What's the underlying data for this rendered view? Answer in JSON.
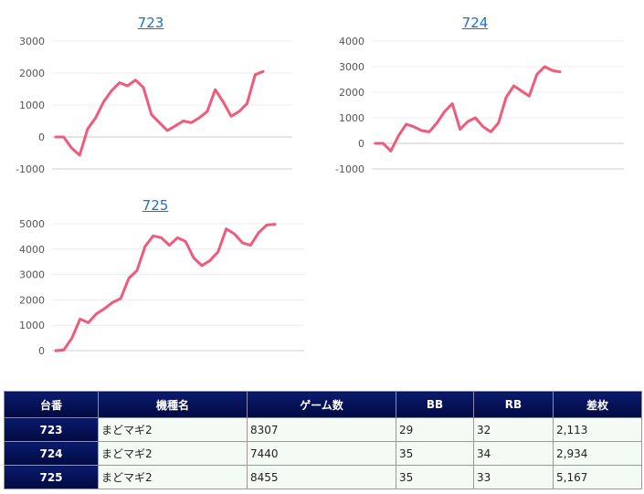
{
  "chart_data": [
    {
      "type": "line",
      "title": "723",
      "ylim": [
        -1000,
        3000
      ],
      "yticks": [
        3000,
        2000,
        1000,
        0,
        -1000
      ],
      "color": "#f05b7a",
      "values": [
        0,
        0,
        -350,
        -570,
        250,
        600,
        1100,
        1450,
        1700,
        1600,
        1780,
        1550,
        700,
        450,
        200,
        350,
        500,
        450,
        600,
        800,
        1480,
        1100,
        650,
        800,
        1050,
        1950,
        2050
      ]
    },
    {
      "type": "line",
      "title": "724",
      "ylim": [
        -1000,
        4000
      ],
      "yticks": [
        4000,
        3000,
        2000,
        1000,
        0,
        -1000
      ],
      "color": "#f05b7a",
      "values": [
        0,
        0,
        -300,
        300,
        750,
        650,
        500,
        450,
        800,
        1250,
        1550,
        550,
        850,
        1000,
        650,
        450,
        800,
        1800,
        2250,
        2050,
        1850,
        2700,
        3000,
        2850,
        2800
      ]
    },
    {
      "type": "line",
      "title": "725",
      "ylim": [
        0,
        5000
      ],
      "yticks": [
        5000,
        4000,
        3000,
        2000,
        1000,
        0
      ],
      "color": "#f05b7a",
      "values": [
        0,
        30,
        500,
        1250,
        1100,
        1450,
        1650,
        1900,
        2050,
        2850,
        3150,
        4100,
        4520,
        4450,
        4150,
        4450,
        4300,
        3650,
        3350,
        3550,
        3900,
        4800,
        4600,
        4250,
        4150,
        4650,
        4950,
        4980
      ]
    }
  ],
  "table": {
    "headers": [
      "台番",
      "機種名",
      "ゲーム数",
      "BB",
      "RB",
      "差枚"
    ],
    "rows": [
      [
        "723",
        "まどマギ2",
        "8307",
        "29",
        "32",
        "2,113"
      ],
      [
        "724",
        "まどマギ2",
        "7440",
        "35",
        "34",
        "2,934"
      ],
      [
        "725",
        "まどマギ2",
        "8455",
        "35",
        "33",
        "5,167"
      ]
    ]
  }
}
